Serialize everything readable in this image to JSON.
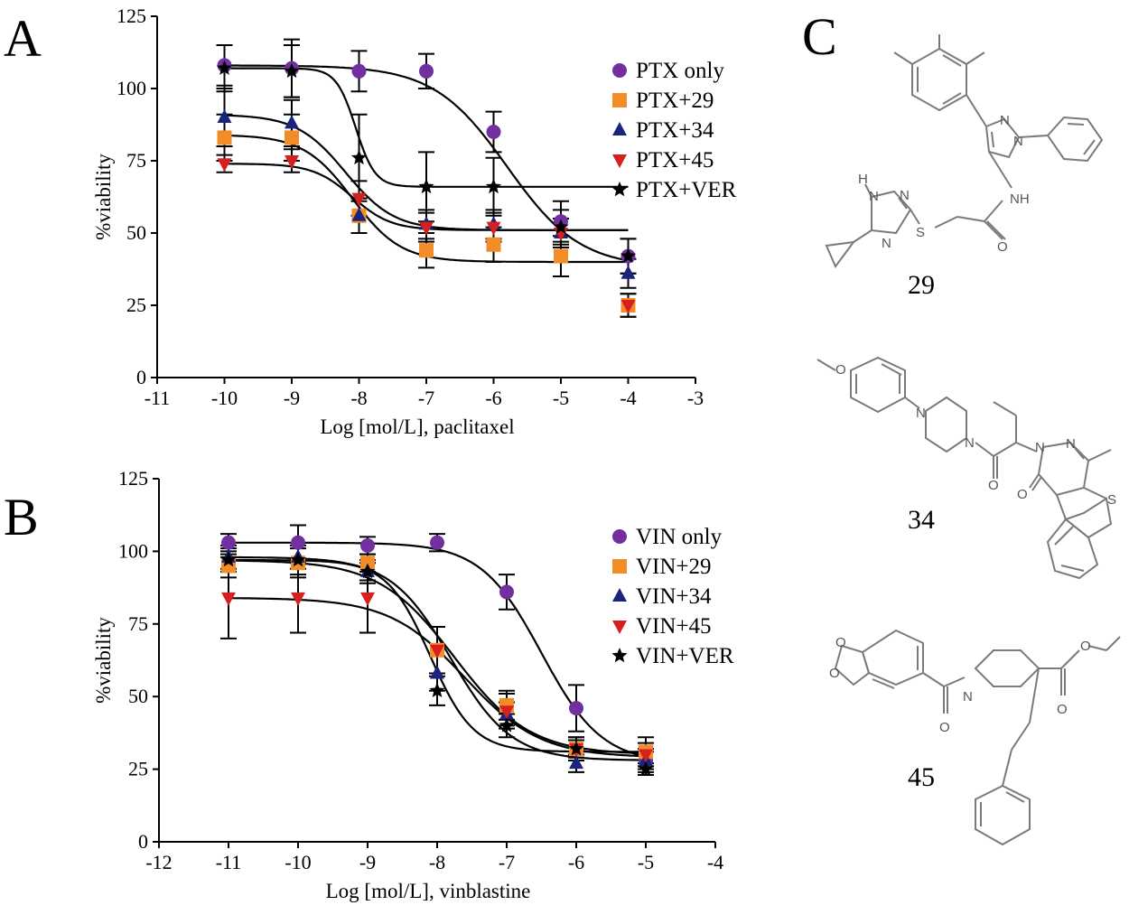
{
  "figure": {
    "panel_labels": {
      "a": "A",
      "b": "B",
      "c": "C"
    },
    "compounds": {
      "c29": {
        "id": "29",
        "atoms": {
          "h": "H",
          "n1": "N",
          "n2": "N",
          "n3": "N",
          "n4": "N",
          "n5": "N",
          "nh": "NH",
          "s": "S",
          "o": "O"
        }
      },
      "c34": {
        "id": "34",
        "atoms": {
          "o_methoxy": "O",
          "n_pip1": "N",
          "n_pip2": "N",
          "n_pyr1": "N",
          "n_pyr2": "N",
          "o_amide": "O",
          "o_ketone": "O",
          "s": "S"
        }
      },
      "c45": {
        "id": "45",
        "atoms": {
          "o1": "O",
          "o2": "O",
          "n": "N",
          "o_amide": "O",
          "o_ester1": "O",
          "o_ester2": "O"
        }
      }
    }
  },
  "chart_data": [
    {
      "type": "line",
      "panel": "A",
      "xlabel": "Log [mol/L], paclitaxel",
      "ylabel": "%viability",
      "xlim": [
        -11,
        -3
      ],
      "ylim": [
        0,
        125
      ],
      "xticks": [
        -11,
        -10,
        -9,
        -8,
        -7,
        -6,
        -5,
        -4,
        -3
      ],
      "yticks": [
        0,
        25,
        50,
        75,
        100,
        125
      ],
      "x": [
        -10,
        -9,
        -8,
        -7,
        -6,
        -5,
        -4
      ],
      "legend_position": "top-right",
      "series": [
        {
          "name": "PTX only",
          "marker": "circle",
          "color": "#7030a0",
          "values": [
            108,
            107,
            106,
            106,
            85,
            54,
            42
          ],
          "errors": [
            7,
            10,
            7,
            6,
            7,
            7,
            6
          ],
          "fit": {
            "top": 108,
            "bottom": 38,
            "logec50": -5.8,
            "hill": 0.8
          }
        },
        {
          "name": "PTX+29",
          "marker": "square",
          "color": "#f28c28",
          "values": [
            83,
            83,
            56,
            44,
            46,
            42,
            25
          ],
          "errors": [
            8,
            8,
            6,
            6,
            6,
            7,
            4
          ],
          "fit": {
            "top": 84,
            "bottom": 40,
            "logec50": -8.1,
            "hill": 1.2
          }
        },
        {
          "name": "PTX+34",
          "marker": "triangle-up",
          "color": "#1a237e",
          "values": [
            90,
            88,
            56,
            53,
            53,
            50,
            36
          ],
          "errors": [
            10,
            8,
            6,
            5,
            5,
            5,
            5
          ],
          "fit": {
            "top": 91,
            "bottom": 51,
            "logec50": -8.2,
            "hill": 1.2
          }
        },
        {
          "name": "PTX+45",
          "marker": "triangle-down",
          "color": "#d62020",
          "values": [
            74,
            75,
            62,
            52,
            52,
            50,
            25
          ],
          "errors": [
            3,
            4,
            6,
            5,
            5,
            5,
            4
          ],
          "fit": {
            "top": 74,
            "bottom": 51,
            "logec50": -8.1,
            "hill": 1.5
          }
        },
        {
          "name": "PTX+VER",
          "marker": "star",
          "color": "#000000",
          "values": [
            107,
            106,
            76,
            66,
            66,
            52,
            42
          ],
          "errors": [
            8,
            9,
            15,
            12,
            10,
            6,
            6
          ],
          "fit": {
            "top": 107,
            "bottom": 66,
            "logec50": -8.05,
            "hill": 3.0
          }
        }
      ]
    },
    {
      "type": "line",
      "panel": "B",
      "xlabel": "Log [mol/L], vinblastine",
      "ylabel": "%viability",
      "xlim": [
        -12,
        -4
      ],
      "ylim": [
        0,
        125
      ],
      "xticks": [
        -12,
        -11,
        -10,
        -9,
        -8,
        -7,
        -6,
        -5,
        -4
      ],
      "yticks": [
        0,
        25,
        50,
        75,
        100,
        125
      ],
      "x": [
        -11,
        -10,
        -9,
        -8,
        -7,
        -6,
        -5
      ],
      "legend_position": "top-right",
      "series": [
        {
          "name": "VIN only",
          "marker": "circle",
          "color": "#7030a0",
          "values": [
            103,
            103,
            102,
            103,
            86,
            46,
            28
          ],
          "errors": [
            3,
            6,
            3,
            3,
            6,
            8,
            4
          ],
          "fit": {
            "top": 103,
            "bottom": 27,
            "logec50": -6.5,
            "hill": 1.0
          }
        },
        {
          "name": "VIN+29",
          "marker": "square",
          "color": "#f28c28",
          "values": [
            95,
            96,
            96,
            66,
            47,
            32,
            31
          ],
          "errors": [
            4,
            5,
            3,
            8,
            5,
            4,
            5
          ],
          "fit": {
            "top": 97,
            "bottom": 30,
            "logec50": -7.75,
            "hill": 0.8
          }
        },
        {
          "name": "VIN+34",
          "marker": "triangle-up",
          "color": "#1a237e",
          "values": [
            98,
            98,
            93,
            58,
            44,
            27,
            28
          ],
          "errors": [
            4,
            4,
            3,
            6,
            4,
            3,
            3
          ],
          "fit": {
            "top": 98,
            "bottom": 28,
            "logec50": -7.8,
            "hill": 1.0
          }
        },
        {
          "name": "VIN+45",
          "marker": "triangle-down",
          "color": "#d62020",
          "values": [
            84,
            84,
            84,
            66,
            45,
            32,
            30
          ],
          "errors": [
            14,
            12,
            12,
            8,
            6,
            4,
            4
          ],
          "fit": {
            "top": 84,
            "bottom": 29,
            "logec50": -7.6,
            "hill": 0.8
          }
        },
        {
          "name": "VIN+VER",
          "marker": "star",
          "color": "#000000",
          "values": [
            97,
            97,
            93,
            52,
            40,
            32,
            25
          ],
          "errors": [
            4,
            5,
            4,
            5,
            4,
            3,
            2
          ],
          "fit": {
            "top": 97,
            "bottom": 31,
            "logec50": -8.1,
            "hill": 1.4
          }
        }
      ]
    }
  ]
}
